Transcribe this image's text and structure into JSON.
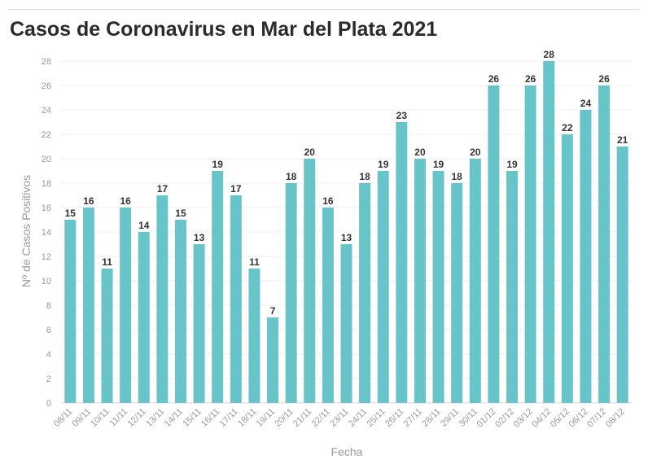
{
  "chart_data": {
    "type": "bar",
    "title": "Casos de Coronavirus en Mar del Plata 2021",
    "xlabel": "Fecha",
    "ylabel": "Nº de Casos Positivos",
    "categories": [
      "08/11",
      "09/11",
      "10/11",
      "11/11",
      "12/11",
      "13/11",
      "14/11",
      "15/11",
      "16/11",
      "17/11",
      "18/11",
      "19/11",
      "20/11",
      "21/11",
      "22/11",
      "23/11",
      "24/11",
      "25/11",
      "26/11",
      "27/11",
      "28/11",
      "29/11",
      "30/11",
      "01/12",
      "02/12",
      "03/12",
      "04/12",
      "05/12",
      "06/12",
      "07/12",
      "08/12"
    ],
    "values": [
      15,
      16,
      11,
      16,
      14,
      17,
      15,
      13,
      19,
      17,
      11,
      7,
      18,
      20,
      16,
      13,
      18,
      19,
      23,
      20,
      19,
      18,
      20,
      26,
      19,
      26,
      28,
      22,
      24,
      26,
      21
    ],
    "ylim": [
      0,
      28
    ],
    "yticks": [
      0,
      2,
      4,
      6,
      8,
      10,
      12,
      14,
      16,
      18,
      20,
      22,
      24,
      26,
      28
    ],
    "grid": true,
    "bar_color": "#67c4c9",
    "data_labels": true
  }
}
